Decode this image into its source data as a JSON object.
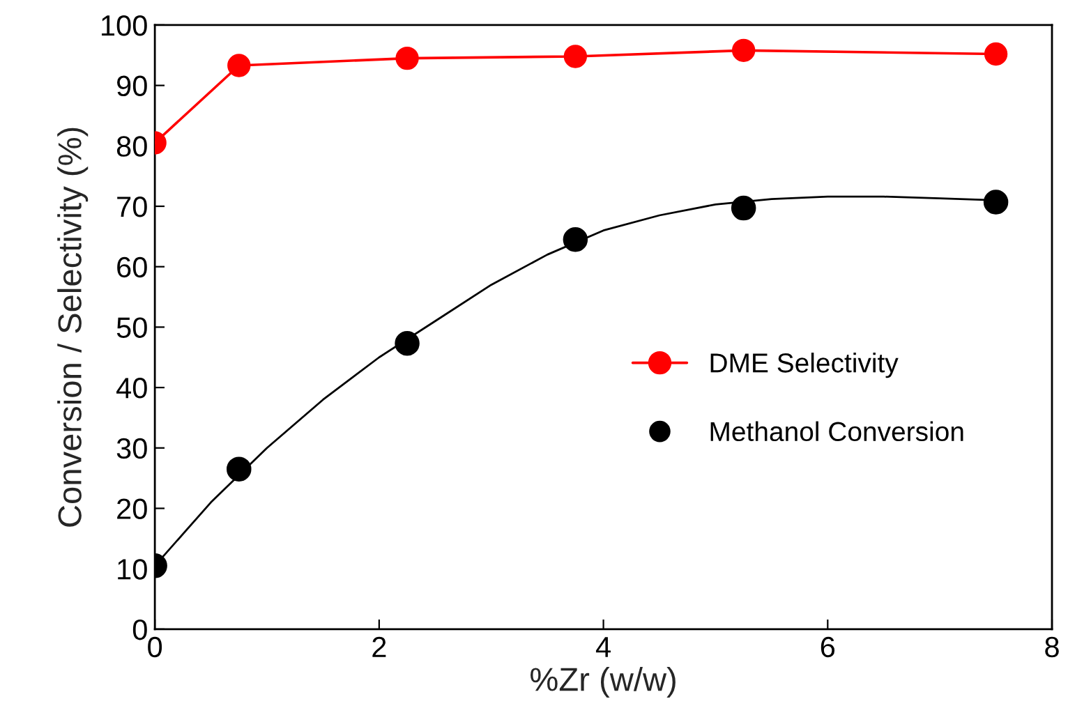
{
  "chart_data": {
    "type": "line",
    "xlabel": "%Zr (w/w)",
    "ylabel": "Conversion / Selectivity (%)",
    "xlim": [
      0,
      8
    ],
    "xticks": [
      0,
      2,
      4,
      6,
      8
    ],
    "ylim": [
      0,
      100
    ],
    "yticks": [
      0,
      10,
      20,
      30,
      40,
      50,
      60,
      70,
      80,
      90,
      100
    ],
    "grid": false,
    "legend": "right",
    "series": [
      {
        "name": "DME Selectivity",
        "marker": "circle",
        "color": "#ff0000",
        "x": [
          0,
          0.75,
          2.25,
          3.75,
          5.25,
          7.5
        ],
        "values": [
          80.5,
          93.3,
          94.5,
          94.8,
          95.8,
          95.2
        ]
      },
      {
        "name": "Methanol Conversion",
        "type": "scatter",
        "marker": "circle",
        "color": "#000000",
        "x": [
          0,
          0.75,
          2.25,
          3.75,
          5.25,
          7.5
        ],
        "values": [
          10.5,
          26.5,
          47.3,
          64.5,
          69.7,
          70.7
        ]
      },
      {
        "marker": "none",
        "color": "#000000",
        "x": [
          0,
          0.5,
          1,
          1.5,
          2,
          2.5,
          3,
          3.5,
          4,
          4.5,
          5,
          5.5,
          6,
          6.5,
          7,
          7.5
        ],
        "values": [
          10.5,
          21,
          30,
          38,
          45,
          51,
          57,
          62,
          66,
          68.5,
          70.3,
          71.2,
          71.6,
          71.6,
          71.3,
          71
        ]
      }
    ]
  }
}
